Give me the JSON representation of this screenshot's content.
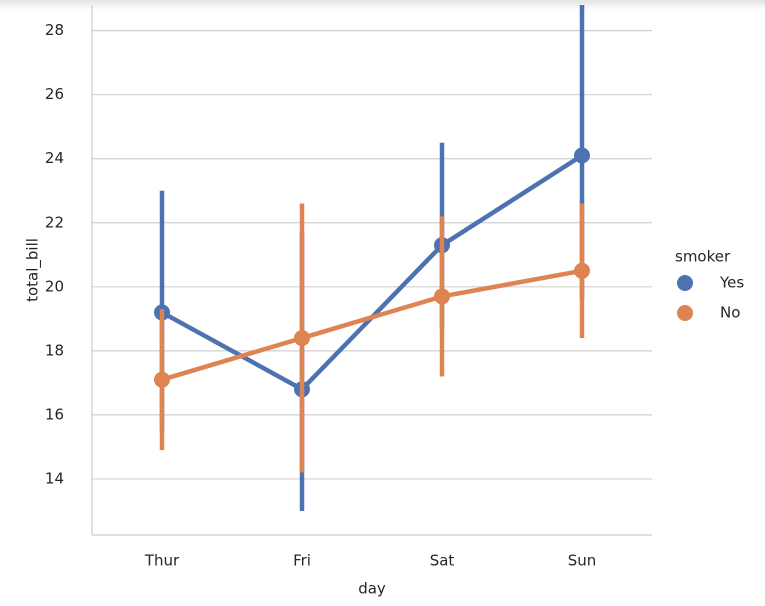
{
  "chart_data": {
    "type": "point",
    "x_label": "day",
    "y_label": "total_bill",
    "categories": [
      "Thur",
      "Fri",
      "Sat",
      "Sun"
    ],
    "series": [
      {
        "name": "Yes",
        "color": "#4c72b0",
        "values": [
          19.2,
          16.8,
          21.3,
          24.1
        ],
        "ci_low": [
          15.5,
          13.0,
          18.7,
          19.6
        ],
        "ci_high": [
          23.0,
          21.7,
          24.5,
          29.5
        ]
      },
      {
        "name": "No",
        "color": "#dd8452",
        "values": [
          17.1,
          18.4,
          19.7,
          20.5
        ],
        "ci_low": [
          14.9,
          14.2,
          17.2,
          18.4
        ],
        "ci_high": [
          19.3,
          22.6,
          22.2,
          22.6
        ]
      }
    ],
    "ylim": [
      12.25,
      28.8
    ],
    "yticks": [
      14,
      16,
      18,
      20,
      22,
      24,
      26,
      28
    ],
    "grid": true,
    "legend_title": "smoker",
    "legend": "right"
  }
}
